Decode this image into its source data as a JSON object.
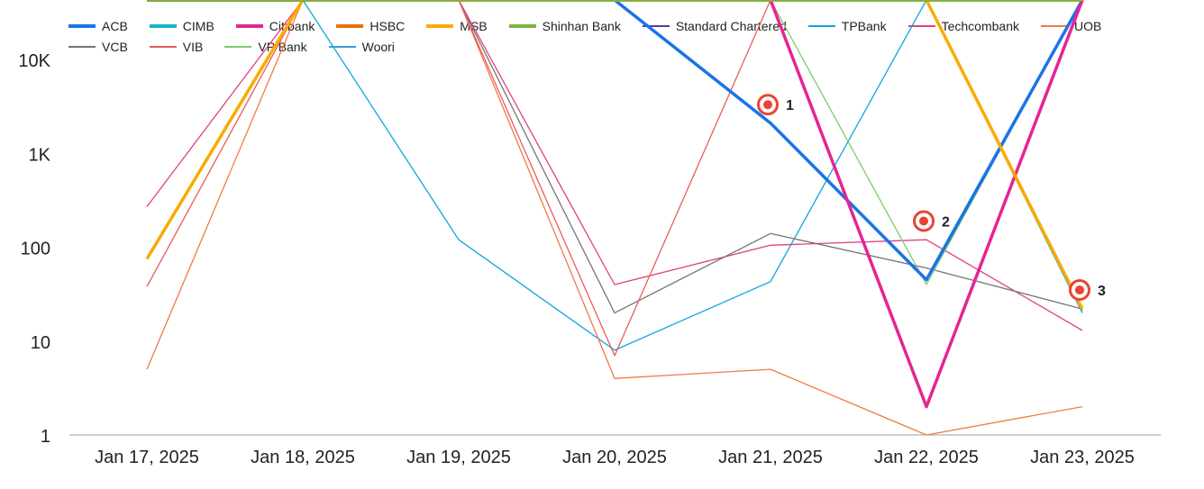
{
  "chart_data": {
    "type": "line",
    "yscale": "log",
    "ylim": [
      1,
      10000
    ],
    "y_ticks": [
      {
        "value": 1,
        "label": "1"
      },
      {
        "value": 10,
        "label": "10"
      },
      {
        "value": 100,
        "label": "100"
      },
      {
        "value": 1000,
        "label": "1K"
      },
      {
        "value": 10000,
        "label": "10K"
      }
    ],
    "categories": [
      "Jan 17, 2025",
      "Jan 18, 2025",
      "Jan 19, 2025",
      "Jan 20, 2025",
      "Jan 21, 2025",
      "Jan 22, 2025",
      "Jan 23, 2025"
    ],
    "series": [
      {
        "name": "ACB",
        "color": "#1a73e8",
        "weight": "bold",
        "values": [
          0,
          0,
          0,
          0,
          2100,
          45,
          0
        ]
      },
      {
        "name": "CIMB",
        "color": "#12b5cb",
        "weight": "bold",
        "values": [
          0,
          0,
          0,
          0,
          0,
          0,
          0
        ]
      },
      {
        "name": "Citibank",
        "color": "#e52592",
        "weight": "bold",
        "values": [
          0,
          0,
          0,
          0,
          0,
          2,
          0
        ]
      },
      {
        "name": "HSBC",
        "color": "#e8710a",
        "weight": "bold",
        "values": [
          0,
          0,
          0,
          0,
          0,
          0,
          0
        ]
      },
      {
        "name": "MSB",
        "color": "#f9ab00",
        "weight": "bold",
        "values": [
          75,
          0,
          0,
          0,
          0,
          0,
          22
        ]
      },
      {
        "name": "Shinhan Bank",
        "color": "#7cb342",
        "weight": "bold",
        "values": [
          0,
          0,
          0,
          0,
          0,
          0,
          0
        ]
      },
      {
        "name": "Standard Chartered",
        "color": "#5e35b1",
        "weight": "thin",
        "values": [
          0,
          0,
          0,
          0,
          0,
          0,
          0
        ]
      },
      {
        "name": "TPBank",
        "color": "#12a4e0",
        "weight": "thin",
        "values": [
          0,
          0,
          120,
          8,
          43,
          0,
          20
        ]
      },
      {
        "name": "Techcombank",
        "color": "#e0407e",
        "weight": "thin",
        "values": [
          270,
          0,
          0,
          40,
          105,
          120,
          13
        ]
      },
      {
        "name": "UOB",
        "color": "#f07a45",
        "weight": "thin",
        "values": [
          5,
          0,
          0,
          4,
          5,
          1,
          2
        ]
      },
      {
        "name": "VCB",
        "color": "#757575",
        "weight": "thin",
        "values": [
          0,
          0,
          0,
          20,
          140,
          60,
          22
        ]
      },
      {
        "name": "VIB",
        "color": "#ea5b5b",
        "weight": "thin",
        "values": [
          38,
          0,
          0,
          7,
          0,
          0,
          0
        ]
      },
      {
        "name": "VP Bank",
        "color": "#7ccd6e",
        "weight": "thin",
        "values": [
          0,
          0,
          0,
          0,
          0,
          40,
          0
        ]
      },
      {
        "name": "Woori",
        "color": "#3d9ae0",
        "weight": "thin",
        "values": [
          0,
          0,
          0,
          0,
          0,
          0,
          21
        ]
      }
    ],
    "annotations": [
      {
        "label": "1",
        "category": "Jan 21, 2025",
        "value": 3300
      },
      {
        "label": "2",
        "category": "Jan 22, 2025",
        "value": 190
      },
      {
        "label": "3",
        "category": "Jan 23, 2025",
        "value": 35
      }
    ],
    "annotation_color": "#ea4335",
    "grid_color": "#e0e0e0",
    "axis_color": "#bdbdbd",
    "legend_position": "top-left"
  }
}
